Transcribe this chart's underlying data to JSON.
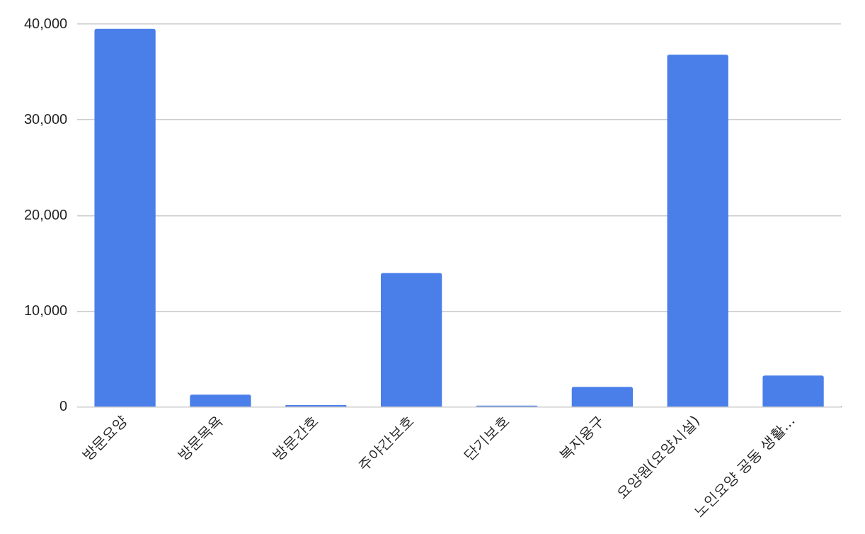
{
  "chart_data": {
    "type": "bar",
    "categories": [
      "방문요양",
      "방문목욕",
      "방문간호",
      "주야간보호",
      "단기보호",
      "복지용구",
      "요양원(요양시설)",
      "노인요양 공동 생활…"
    ],
    "values": [
      39500,
      1300,
      200,
      14000,
      150,
      2100,
      36800,
      3300
    ],
    "color": "#4a7fea",
    "ylim": [
      0,
      40000
    ],
    "yticks": [
      {
        "value": 0,
        "label": "0"
      },
      {
        "value": 10000,
        "label": "10,000"
      },
      {
        "value": 20000,
        "label": "20,000"
      },
      {
        "value": 30000,
        "label": "30,000"
      },
      {
        "value": 40000,
        "label": "40,000"
      }
    ],
    "grid": "y",
    "legend": false
  }
}
